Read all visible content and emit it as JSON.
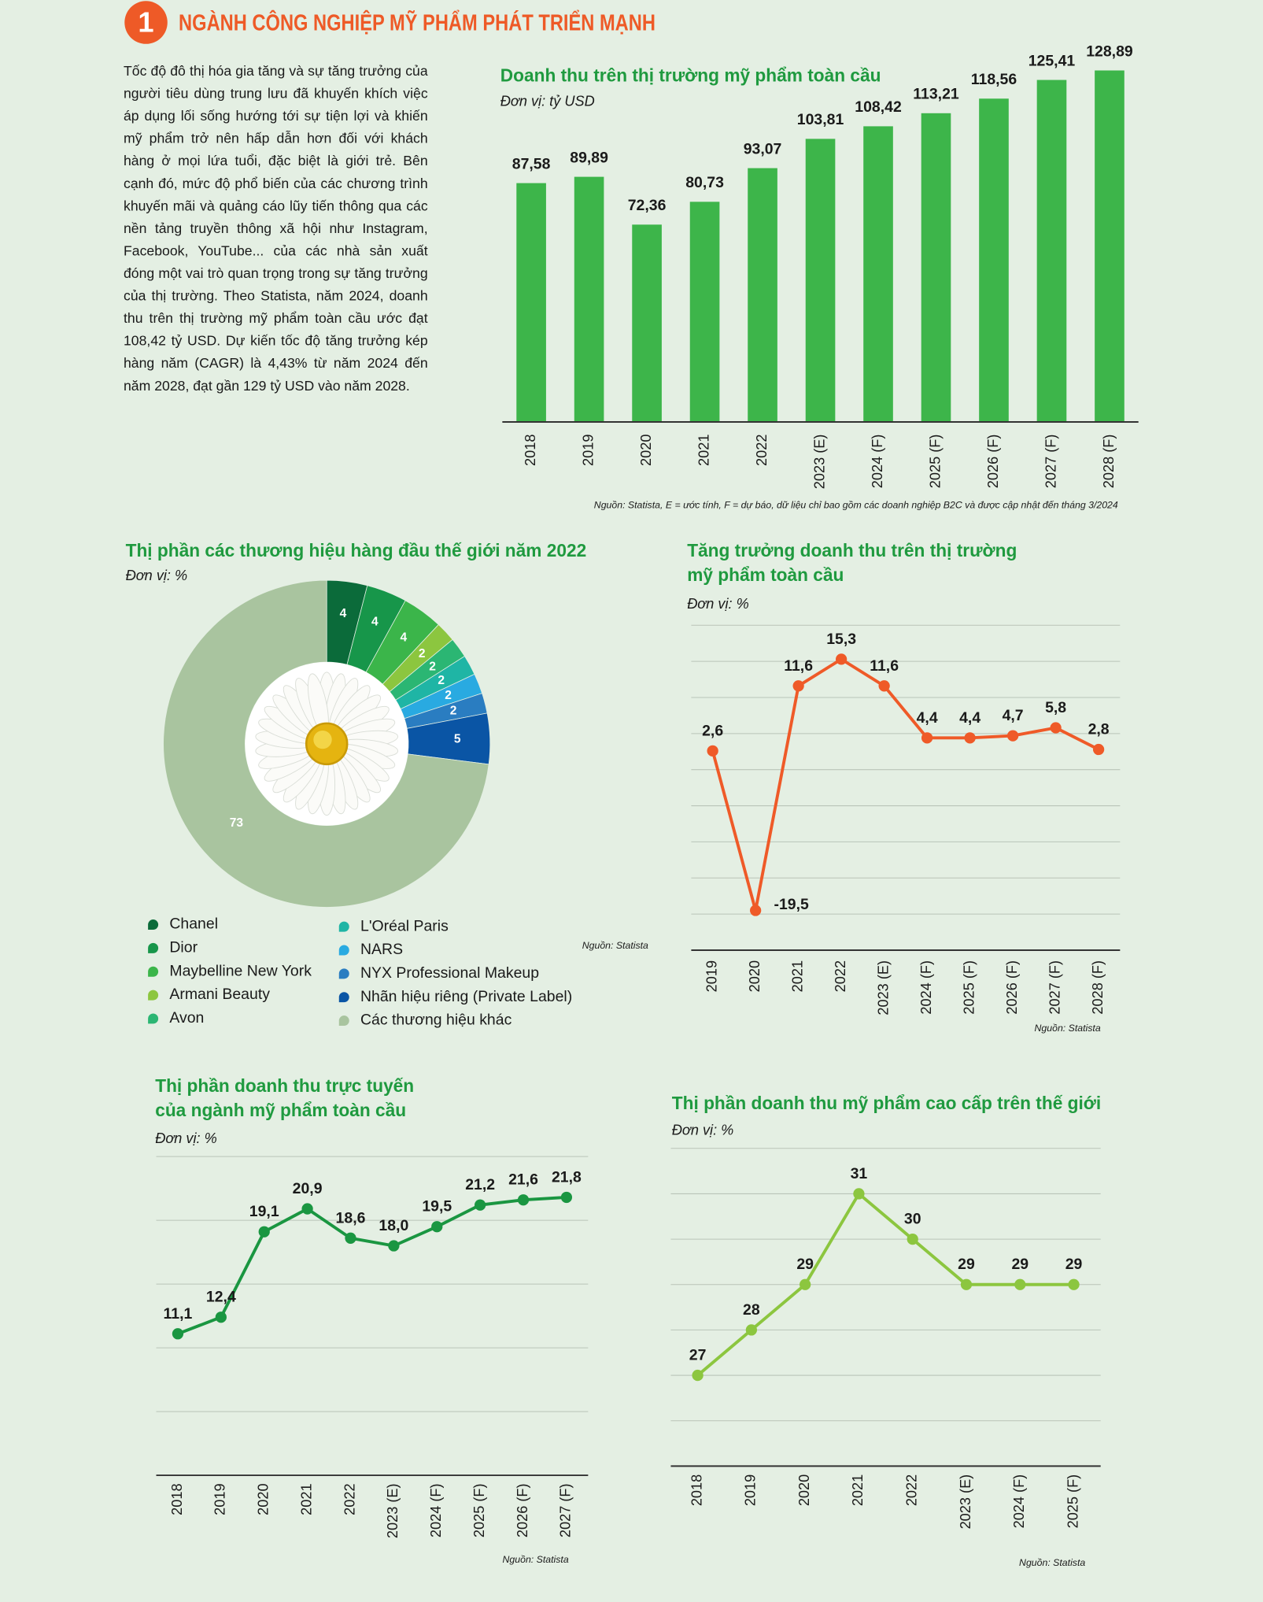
{
  "header": {
    "number": "1",
    "title": "NGÀNH CÔNG NGHIỆP MỸ PHẨM PHÁT TRIỂN MẠNH"
  },
  "intro": "Tốc độ đô thị hóa gia tăng và sự tăng trưởng của người tiêu dùng trung lưu đã khuyến khích việc áp dụng lối sống hướng tới sự tiện lợi và khiến mỹ phẩm trở nên hấp dẫn hơn đối với khách hàng ở mọi lứa tuổi, đặc biệt là giới trẻ. Bên cạnh đó, mức độ phổ biến của các chương trình khuyến mãi và quảng cáo lũy tiến thông qua các nền tảng truyền thông xã hội như Instagram, Facebook, YouTube... của các nhà sản xuất đóng một vai trò quan trọng trong sự tăng trưởng của thị trường. Theo Statista, năm 2024, doanh thu trên thị trường mỹ phẩm toàn cầu ước đạt 108,42 tỷ USD. Dự kiến tốc độ tăng trưởng kép hàng năm (CAGR) là 4,43% từ năm 2024 đến năm 2028, đạt gần 129 tỷ USD vào năm 2028.",
  "chart_data": [
    {
      "type": "bar",
      "title": "Doanh thu trên thị trường mỹ phẩm toàn cầu",
      "subtitle": "Đơn vị: tỷ USD",
      "source": "Nguồn: Statista, E = ước tính, F = dự báo, dữ liệu chỉ bao gồm các doanh nghiệp B2C và được cập nhật đến tháng 3/2024",
      "categories": [
        "2018",
        "2019",
        "2020",
        "2021",
        "2022",
        "2023 (E)",
        "2024 (F)",
        "2025 (F)",
        "2026 (F)",
        "2027 (F)",
        "2028 (F)"
      ],
      "values": [
        87.58,
        89.89,
        72.36,
        80.73,
        93.07,
        103.81,
        108.42,
        113.21,
        118.56,
        125.41,
        128.89
      ],
      "value_labels": [
        "87,58",
        "89,89",
        "72,36",
        "80,73",
        "93,07",
        "103,81",
        "108,42",
        "113,21",
        "118,56",
        "125,41",
        "128,89"
      ],
      "color": "#3db54a",
      "ylim": [
        0,
        130
      ]
    },
    {
      "type": "pie",
      "title": "Thị phần các thương hiệu hàng đầu thế giới năm 2022",
      "subtitle": "Đơn vị: %",
      "source": "Nguồn: Statista",
      "categories": [
        "Chanel",
        "Dior",
        "Maybelline New York",
        "Armani Beauty",
        "Avon",
        "L'Oréal Paris",
        "NARS",
        "NYX Professional Makeup",
        "Nhãn hiệu riêng (Private Label)",
        "Các thương hiệu khác"
      ],
      "values": [
        4,
        4,
        4,
        2,
        2,
        2,
        2,
        2,
        5,
        73
      ],
      "colors": [
        "#0b6b3a",
        "#17964a",
        "#3bb54a",
        "#8cc63f",
        "#2bb673",
        "#1fb5a5",
        "#29aae1",
        "#2a7dc1",
        "#0a55a5",
        "#a9c49f"
      ]
    },
    {
      "type": "line",
      "title": [
        "Tăng trưởng doanh thu trên thị trường",
        "mỹ phẩm toàn cầu"
      ],
      "subtitle": "Đơn vị: %",
      "source": "Nguồn: Statista",
      "categories": [
        "2019",
        "2020",
        "2021",
        "2022",
        "2023 (E)",
        "2024 (F)",
        "2025 (F)",
        "2026 (F)",
        "2027 (F)",
        "2028 (F)"
      ],
      "values": [
        2.6,
        -19.5,
        11.6,
        15.3,
        11.6,
        4.4,
        4.4,
        4.7,
        5.8,
        2.8
      ],
      "value_labels": [
        "2,6",
        "-19,5",
        "11,6",
        "15,3",
        "11,6",
        "4,4",
        "4,4",
        "4,7",
        "5,8",
        "2,8"
      ],
      "color": "#ef5a28",
      "ylim": [
        -25,
        20
      ],
      "yticks": [
        -20,
        -15,
        -10,
        -5,
        0,
        5,
        10,
        15,
        20
      ],
      "grid": true
    },
    {
      "type": "line",
      "title": [
        "Thị phần doanh thu trực tuyến",
        "của ngành mỹ phẩm toàn cầu"
      ],
      "subtitle": "Đơn vị: %",
      "source": "Nguồn: Statista",
      "categories": [
        "2018",
        "2019",
        "2020",
        "2021",
        "2022",
        "2023 (E)",
        "2024 (F)",
        "2025 (F)",
        "2026 (F)",
        "2027 (F)"
      ],
      "values": [
        11.1,
        12.4,
        19.1,
        20.9,
        18.6,
        18.0,
        19.5,
        21.2,
        21.6,
        21.8
      ],
      "value_labels": [
        "11,1",
        "12,4",
        "19,1",
        "20,9",
        "18,6",
        "18,0",
        "19,5",
        "21,2",
        "21,6",
        "21,8"
      ],
      "color": "#1a9641",
      "ylim": [
        0,
        25
      ],
      "yticks": [
        5,
        10,
        15,
        20,
        25
      ],
      "grid": true
    },
    {
      "type": "line",
      "title": "Thị phần doanh thu mỹ phẩm cao cấp trên thế giới",
      "subtitle": "Đơn vị: %",
      "source": "Nguồn: Statista",
      "categories": [
        "2018",
        "2019",
        "2020",
        "2021",
        "2022",
        "2023 (E)",
        "2024 (F)",
        "2025 (F)"
      ],
      "values": [
        27,
        28,
        29,
        31,
        30,
        29,
        29,
        29
      ],
      "color": "#8cc63f",
      "ylim": [
        25,
        32
      ],
      "yticks": [
        26,
        27,
        28,
        29,
        30,
        31,
        32
      ],
      "grid": true
    }
  ]
}
